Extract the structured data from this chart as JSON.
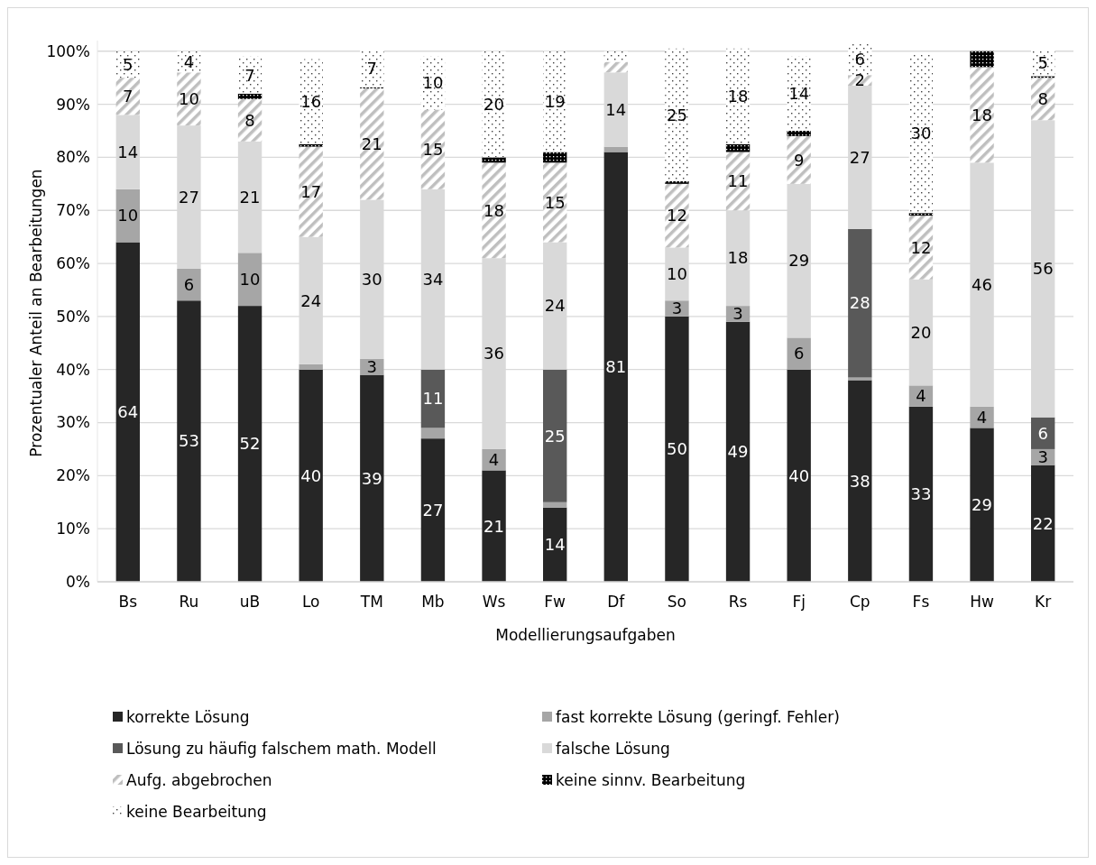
{
  "chart_data": {
    "type": "bar",
    "stacked": true,
    "xlabel": "Modellierungsaufgaben",
    "ylabel": "Prozentualer Anteil an Bearbeitungen",
    "categories": [
      "Bs",
      "Ru",
      "uB",
      "Lo",
      "TM",
      "Mb",
      "Ws",
      "Fw",
      "Df",
      "So",
      "Rs",
      "Fj",
      "Cp",
      "Fs",
      "Hw",
      "Kr"
    ],
    "ylim": [
      0,
      102
    ],
    "yticks": [
      {
        "value": 0,
        "label": "0%"
      },
      {
        "value": 10,
        "label": "10%"
      },
      {
        "value": 20,
        "label": "20%"
      },
      {
        "value": 30,
        "label": "30%"
      },
      {
        "value": 40,
        "label": "40%"
      },
      {
        "value": 50,
        "label": "50%"
      },
      {
        "value": 60,
        "label": "60%"
      },
      {
        "value": 70,
        "label": "70%"
      },
      {
        "value": 80,
        "label": "80%"
      },
      {
        "value": 90,
        "label": "90%"
      },
      {
        "value": 100,
        "label": "100%"
      }
    ],
    "grid": "y",
    "legend": "bottom",
    "series": [
      {
        "name": "korrekte Lösung",
        "color": "#262626",
        "values": [
          64,
          53,
          52,
          40,
          39,
          27,
          21,
          14,
          81,
          50,
          49,
          40,
          38,
          33,
          29,
          22
        ],
        "value_labels": [
          "64",
          "53",
          "52",
          "40",
          "39",
          "27",
          "21",
          "14",
          "81",
          "50",
          "49",
          "40",
          "38",
          "33",
          "29",
          "22"
        ]
      },
      {
        "name": "fast korrekte Lösung (geringf. Fehler)",
        "color": "#a6a6a6",
        "values": [
          10,
          6,
          10,
          1,
          3,
          2,
          4,
          1,
          1,
          3,
          3,
          6,
          0.5,
          4,
          4,
          3
        ],
        "value_labels": [
          "10",
          "6",
          "10",
          null,
          "3",
          null,
          "4",
          null,
          null,
          "3",
          "3",
          "6",
          null,
          "4",
          "4",
          "3"
        ]
      },
      {
        "name": "Lösung zu häufig falschem math. Modell",
        "color": "#595959",
        "values": [
          null,
          null,
          null,
          null,
          null,
          11,
          null,
          25,
          null,
          null,
          null,
          null,
          28,
          null,
          null,
          6
        ],
        "value_labels": [
          null,
          null,
          null,
          null,
          null,
          "11",
          null,
          "25",
          null,
          null,
          null,
          null,
          "28",
          null,
          null,
          "6"
        ]
      },
      {
        "name": "falsche Lösung",
        "color": "#d9d9d9",
        "values": [
          14,
          27,
          21,
          24,
          30,
          34,
          36,
          24,
          14,
          10,
          18,
          29,
          27,
          20,
          46,
          56
        ],
        "value_labels": [
          "14",
          "27",
          "21",
          "24",
          "30",
          "34",
          "36",
          "24",
          "14",
          "10",
          "18",
          "29",
          "27",
          "20",
          "46",
          "56"
        ]
      },
      {
        "name": "Aufg. abgebrochen",
        "color": "#bfbfbf",
        "values": [
          7,
          10,
          8,
          17,
          21,
          15,
          18,
          15,
          2,
          12,
          11,
          9,
          2,
          12,
          18,
          8
        ],
        "value_labels": [
          "7",
          "10",
          "8",
          "17",
          "21",
          "15",
          "18",
          "15",
          null,
          "12",
          "11",
          "9",
          "2",
          "12",
          "18",
          "8"
        ]
      },
      {
        "name": "keine sinnv. Bearbeitung",
        "color": "#000000",
        "values": [
          null,
          null,
          1,
          0.5,
          0.2,
          null,
          1,
          2,
          null,
          0.5,
          1.5,
          1,
          null,
          0.5,
          3,
          0.3
        ]
      },
      {
        "name": "keine Bearbeitung",
        "color": "#404040",
        "values": [
          5,
          4,
          7,
          16,
          7,
          10,
          20,
          19,
          2,
          25,
          18,
          14,
          6,
          30,
          null,
          5
        ],
        "value_labels": [
          "5",
          "4",
          "7",
          "16",
          "7",
          "10",
          "20",
          "19",
          null,
          "25",
          "18",
          "14",
          "6",
          "30",
          null,
          "5"
        ]
      }
    ]
  }
}
